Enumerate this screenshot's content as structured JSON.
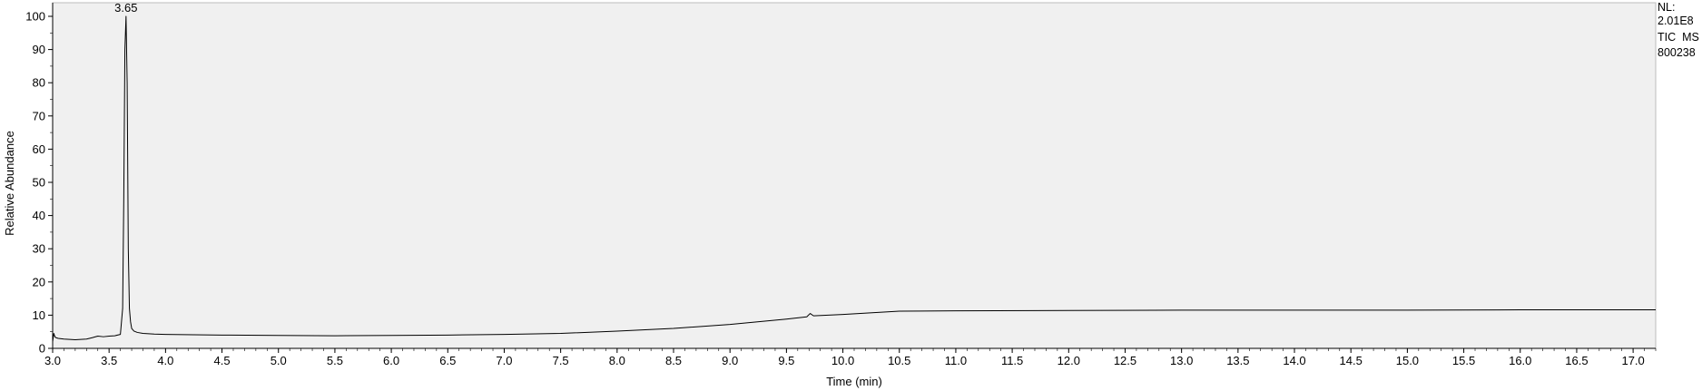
{
  "chart_data": {
    "type": "line",
    "title": "",
    "xlabel": "Time (min)",
    "ylabel": "Relative Abundance",
    "xlim": [
      3.0,
      17.2
    ],
    "ylim": [
      0,
      100
    ],
    "x_ticks": [
      "3.0",
      "3.5",
      "4.0",
      "4.5",
      "5.0",
      "5.5",
      "6.0",
      "6.5",
      "7.0",
      "7.5",
      "8.0",
      "8.5",
      "9.0",
      "9.5",
      "10.0",
      "10.5",
      "11.0",
      "11.5",
      "12.0",
      "12.5",
      "13.0",
      "13.5",
      "14.0",
      "14.5",
      "15.0",
      "15.5",
      "16.0",
      "16.5",
      "17.0"
    ],
    "y_ticks": [
      "0",
      "10",
      "20",
      "30",
      "40",
      "50",
      "60",
      "70",
      "80",
      "90",
      "100"
    ],
    "grid": false,
    "peak_labels": [
      {
        "x": 3.65,
        "y": 100,
        "text": "3.65"
      }
    ],
    "series": [
      {
        "x": [
          3.0,
          3.01,
          3.02,
          3.03,
          3.05,
          3.1,
          3.2,
          3.3,
          3.35,
          3.4,
          3.45,
          3.5,
          3.55,
          3.6,
          3.62,
          3.63,
          3.64,
          3.65,
          3.66,
          3.67,
          3.68,
          3.69,
          3.7,
          3.72,
          3.75,
          3.8,
          3.9,
          4.0,
          4.5,
          5.0,
          5.5,
          6.0,
          6.5,
          7.0,
          7.5,
          8.0,
          8.5,
          9.0,
          9.5,
          9.68,
          9.71,
          9.74,
          10.0,
          10.5,
          11.0,
          12.0,
          13.0,
          14.0,
          15.0,
          16.0,
          17.0,
          17.2
        ],
        "y": [
          2.0,
          4.5,
          3.5,
          3.2,
          3.0,
          2.8,
          2.6,
          2.8,
          3.2,
          3.7,
          3.5,
          3.7,
          3.8,
          4.2,
          12,
          45,
          90,
          100,
          80,
          30,
          12,
          8,
          6,
          5.2,
          4.8,
          4.5,
          4.3,
          4.2,
          4.0,
          3.9,
          3.8,
          3.9,
          4.0,
          4.2,
          4.5,
          5.2,
          6.0,
          7.2,
          8.8,
          9.5,
          10.5,
          9.8,
          10.2,
          11.2,
          11.3,
          11.4,
          11.5,
          11.5,
          11.5,
          11.6,
          11.6,
          11.6
        ]
      }
    ]
  },
  "info": {
    "nl_label": "NL:",
    "nl_value": "2.01E8",
    "trace": "TIC  MS",
    "sample": "800238"
  }
}
